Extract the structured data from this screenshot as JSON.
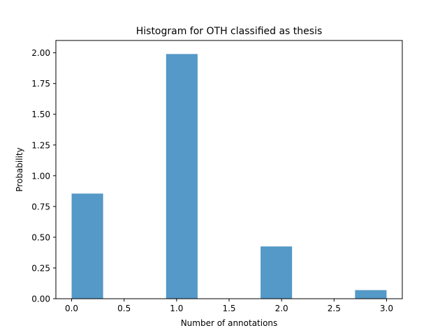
{
  "chart_data": {
    "type": "bar",
    "title": "Histogram for OTH classified as thesis",
    "xlabel": "Number of annotations",
    "ylabel": "Probability",
    "xlim": [
      -0.15,
      3.15
    ],
    "ylim": [
      0,
      2.1
    ],
    "x_ticks": [
      0.0,
      0.5,
      1.0,
      1.5,
      2.0,
      2.5,
      3.0
    ],
    "x_tick_labels": [
      "0.0",
      "0.5",
      "1.0",
      "1.5",
      "2.0",
      "2.5",
      "3.0"
    ],
    "y_ticks": [
      0.0,
      0.25,
      0.5,
      0.75,
      1.0,
      1.25,
      1.5,
      1.75,
      2.0
    ],
    "y_tick_labels": [
      "0.00",
      "0.25",
      "0.50",
      "0.75",
      "1.00",
      "1.25",
      "1.50",
      "1.75",
      "2.00"
    ],
    "bins": [
      {
        "start": 0.0,
        "end": 0.3,
        "value": 0.855
      },
      {
        "start": 0.9,
        "end": 1.2,
        "value": 1.99
      },
      {
        "start": 1.8,
        "end": 2.1,
        "value": 0.425
      },
      {
        "start": 2.7,
        "end": 3.0,
        "value": 0.07
      }
    ],
    "bar_color": "#5499c7",
    "grid": false,
    "legend": false
  }
}
